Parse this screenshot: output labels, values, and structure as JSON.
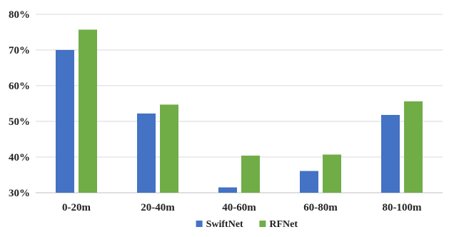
{
  "chart_data": {
    "type": "bar",
    "title": "",
    "xlabel": "",
    "ylabel": "",
    "categories": [
      "0-20m",
      "20-40m",
      "40-60m",
      "60-80m",
      "80-100m"
    ],
    "series": [
      {
        "name": "SwiftNet",
        "color": "#4472c4",
        "values": [
          70.0,
          52.2,
          31.5,
          36.1,
          51.8
        ]
      },
      {
        "name": "RFNet",
        "color": "#70ad47",
        "values": [
          75.7,
          54.7,
          40.4,
          40.7,
          55.6
        ]
      }
    ],
    "ylim": [
      30,
      80
    ],
    "yticks": [
      30,
      40,
      50,
      60,
      70,
      80
    ],
    "ytick_labels": [
      "30%",
      "40%",
      "50%",
      "60%",
      "70%",
      "80%"
    ],
    "grid": true,
    "legend_position": "bottom-center"
  }
}
